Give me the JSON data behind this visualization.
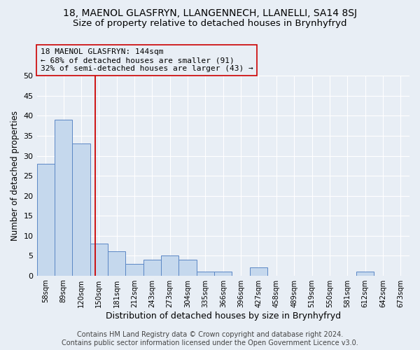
{
  "title": "18, MAENOL GLASFRYN, LLANGENNECH, LLANELLI, SA14 8SJ",
  "subtitle": "Size of property relative to detached houses in Brynhyfryd",
  "xlabel": "Distribution of detached houses by size in Brynhyfryd",
  "ylabel": "Number of detached properties",
  "categories": [
    "58sqm",
    "89sqm",
    "120sqm",
    "150sqm",
    "181sqm",
    "212sqm",
    "243sqm",
    "273sqm",
    "304sqm",
    "335sqm",
    "366sqm",
    "396sqm",
    "427sqm",
    "458sqm",
    "489sqm",
    "519sqm",
    "550sqm",
    "581sqm",
    "612sqm",
    "642sqm",
    "673sqm"
  ],
  "values": [
    28,
    39,
    33,
    8,
    6,
    3,
    4,
    5,
    4,
    1,
    1,
    0,
    2,
    0,
    0,
    0,
    0,
    0,
    1,
    0,
    0
  ],
  "bar_color": "#c5d8ed",
  "bar_edgecolor": "#5b87c5",
  "bar_linewidth": 0.7,
  "ref_line_color": "#cc0000",
  "annotation_line1": "18 MAENOL GLASFRYN: 144sqm",
  "annotation_line2": "← 68% of detached houses are smaller (91)",
  "annotation_line3": "32% of semi-detached houses are larger (43) →",
  "annotation_box_edgecolor": "#cc0000",
  "annotation_fontsize": 8.0,
  "ylim": [
    0,
    50
  ],
  "yticks": [
    0,
    5,
    10,
    15,
    20,
    25,
    30,
    35,
    40,
    45,
    50
  ],
  "footer_line1": "Contains HM Land Registry data © Crown copyright and database right 2024.",
  "footer_line2": "Contains public sector information licensed under the Open Government Licence v3.0.",
  "bg_color": "#e8eef5",
  "plot_bg_color": "#e8eef5",
  "grid_color": "#ffffff",
  "title_fontsize": 10,
  "subtitle_fontsize": 9.5,
  "xlabel_fontsize": 9,
  "ylabel_fontsize": 8.5,
  "footer_fontsize": 7.0
}
